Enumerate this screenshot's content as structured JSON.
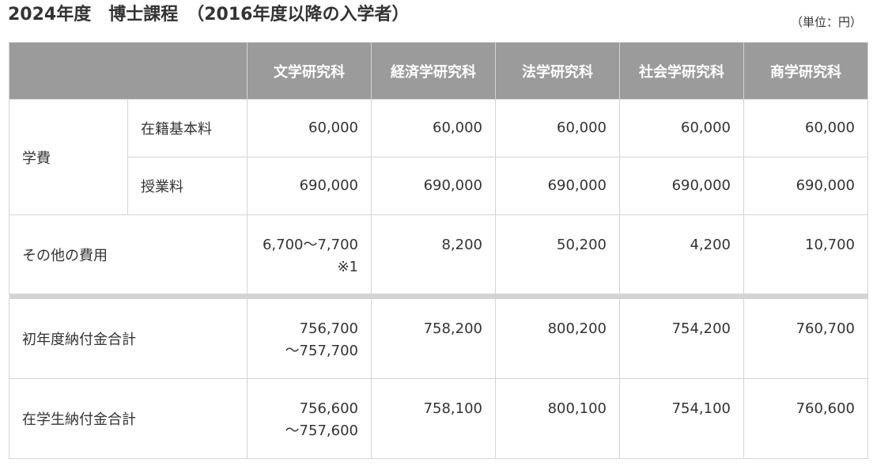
{
  "title": "2024年度　博士課程　（2016年度以降の入学者）",
  "unit": "（単位：円）",
  "columns": [
    "文学研究科",
    "経済学研究科",
    "法学研究科",
    "社会学研究科",
    "商学研究科"
  ],
  "rows": {
    "gakuhi_label": "学費",
    "zaiseki": {
      "label": "在籍基本料",
      "values": [
        "60,000",
        "60,000",
        "60,000",
        "60,000",
        "60,000"
      ]
    },
    "jugyo": {
      "label": "授業料",
      "values": [
        "690,000",
        "690,000",
        "690,000",
        "690,000",
        "690,000"
      ]
    },
    "sonota": {
      "label": "その他の費用",
      "values": [
        {
          "line1": "6,700～7,700",
          "line2": "※1"
        },
        {
          "line1": "8,200",
          "line2": ""
        },
        {
          "line1": "50,200",
          "line2": ""
        },
        {
          "line1": "4,200",
          "line2": ""
        },
        {
          "line1": "10,700",
          "line2": ""
        }
      ]
    },
    "shonendo": {
      "label": "初年度納付金合計",
      "values": [
        {
          "line1": "756,700",
          "line2": "～757,700"
        },
        {
          "line1": "758,200",
          "line2": ""
        },
        {
          "line1": "800,200",
          "line2": ""
        },
        {
          "line1": "754,200",
          "line2": ""
        },
        {
          "line1": "760,700",
          "line2": ""
        }
      ]
    },
    "zaigakusei": {
      "label": "在学生納付金合計",
      "values": [
        {
          "line1": "756,600",
          "line2": "～757,600"
        },
        {
          "line1": "758,100",
          "line2": ""
        },
        {
          "line1": "800,100",
          "line2": ""
        },
        {
          "line1": "754,100",
          "line2": ""
        },
        {
          "line1": "760,600",
          "line2": ""
        }
      ]
    }
  }
}
